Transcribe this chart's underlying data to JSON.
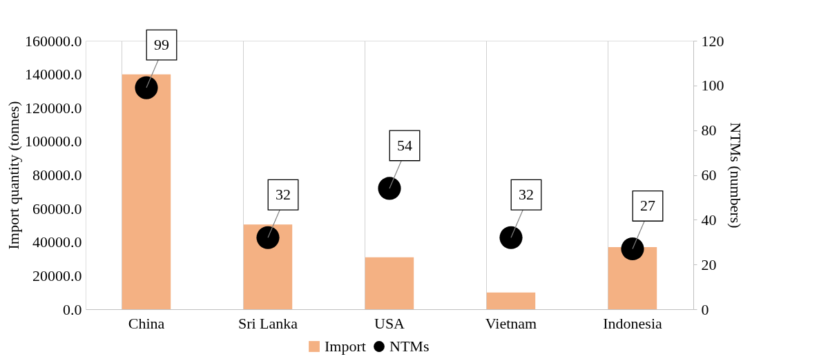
{
  "chart_data": {
    "type": "bar",
    "categories": [
      "China",
      "Sri Lanka",
      "USA",
      "Vietnam",
      "Indonesia"
    ],
    "ylabel": "Import quantity (tonnes)",
    "y2label": "NTMs (numbers)",
    "series": [
      {
        "name": "Import",
        "color": "#f4b183",
        "values": [
          140000,
          50500,
          31000,
          10000,
          37000
        ]
      },
      {
        "name": "NTMs",
        "type": "scatter",
        "axis": "y2",
        "color": "#000000",
        "marker": "circle",
        "data_labels": true,
        "values": [
          99,
          32,
          54,
          32,
          27
        ]
      }
    ],
    "ylim": [
      0,
      160000
    ],
    "yticks": [
      {
        "value": 0,
        "label": "0.0"
      },
      {
        "value": 20000,
        "label": "20000.0"
      },
      {
        "value": 40000,
        "label": "40000.0"
      },
      {
        "value": 60000,
        "label": "60000.0"
      },
      {
        "value": 80000,
        "label": "80000.0"
      },
      {
        "value": 100000,
        "label": "100000.0"
      },
      {
        "value": 120000,
        "label": "120000.0"
      },
      {
        "value": 140000,
        "label": "140000.0"
      },
      {
        "value": 160000,
        "label": "160000.0"
      }
    ],
    "y2lim": [
      0,
      120
    ],
    "y2ticks": [
      0,
      20,
      40,
      60,
      80,
      100,
      120
    ],
    "grid": "x",
    "legend": "bottom"
  }
}
